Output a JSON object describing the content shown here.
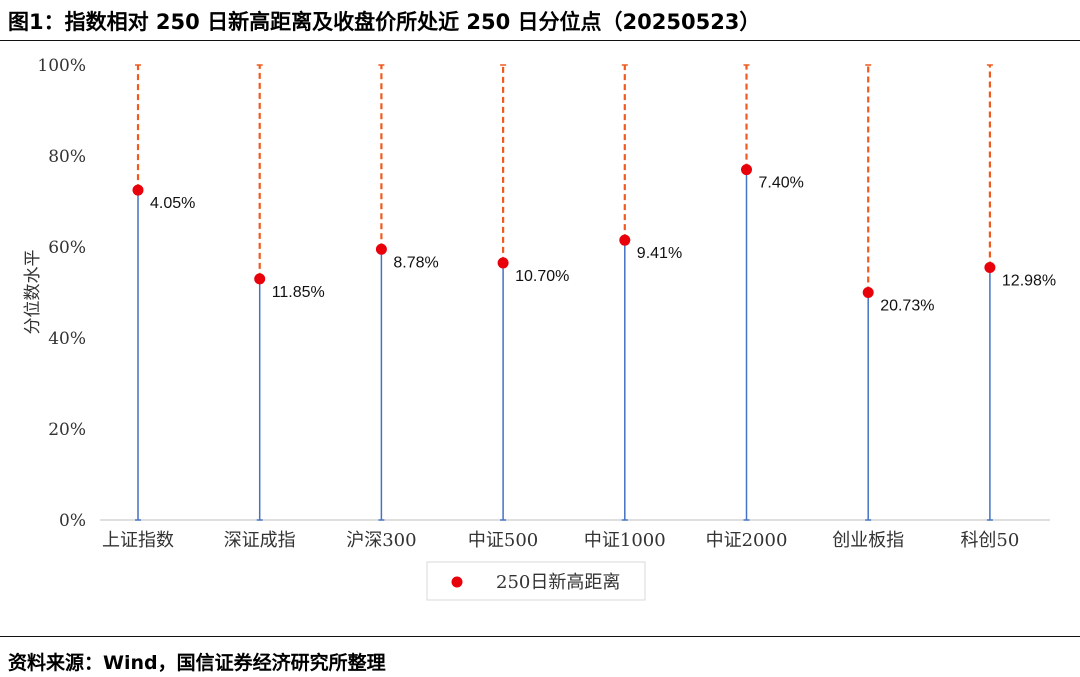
{
  "header": {
    "title": "图1：指数相对 250 日新高距离及收盘价所处近 250 日分位点（20250523）"
  },
  "footer": {
    "source": "资料来源：Wind，国信证券经济研究所整理"
  },
  "chart_data": {
    "type": "scatter",
    "title": "",
    "xlabel": "",
    "ylabel": "分位数水平",
    "ylim": [
      0,
      100
    ],
    "yticks": [
      "0%",
      "20%",
      "40%",
      "60%",
      "80%",
      "100%"
    ],
    "categories": [
      "上证指数",
      "深证成指",
      "沪深300",
      "中证500",
      "中证1000",
      "中证2000",
      "创业板指",
      "科创50"
    ],
    "series": [
      {
        "name": "250日新高距离",
        "percentile": [
          72.5,
          53.0,
          59.5,
          56.5,
          61.5,
          77.0,
          50.0,
          55.5
        ],
        "labels": [
          "4.05%",
          "11.85%",
          "8.78%",
          "10.70%",
          "9.41%",
          "7.40%",
          "20.73%",
          "12.98%"
        ]
      }
    ],
    "colors": {
      "point": "#e8000b",
      "below_line": "#4472c4",
      "above_line": "#f05a1e",
      "axis": "#bfbfbf"
    },
    "legend_position": "bottom-center",
    "grid": false
  }
}
